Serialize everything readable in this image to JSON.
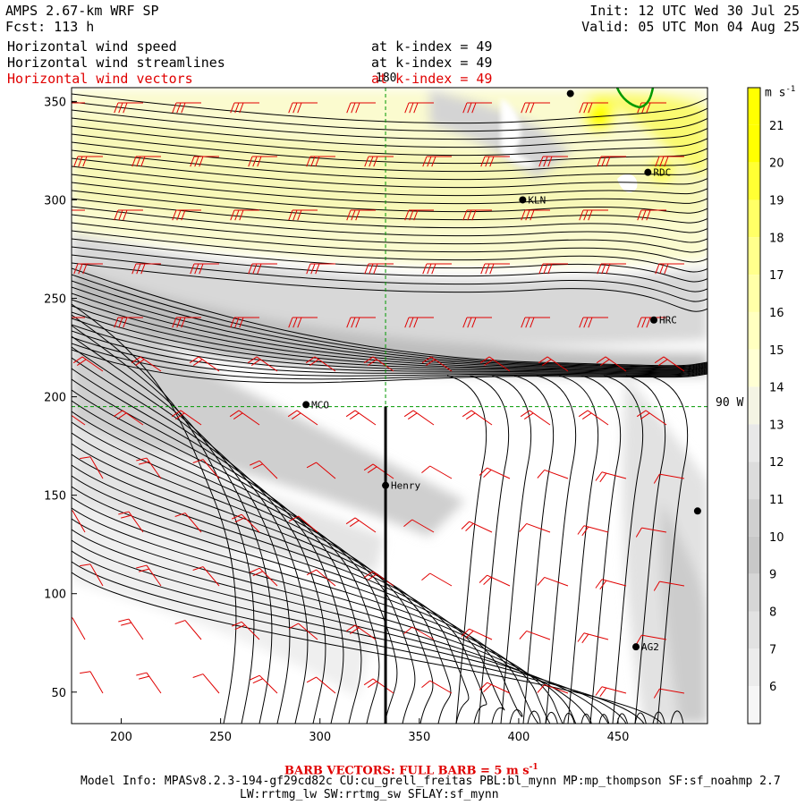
{
  "header": {
    "model_title": "AMPS 2.67-km WRF SP",
    "forecast": "Fcst: 113 h",
    "init": "Init: 12 UTC Wed 30 Jul 25",
    "valid": "Valid: 05 UTC Mon 04 Aug 25",
    "fields": [
      {
        "label": "Horizontal wind speed",
        "level": "at k-index = 49",
        "color": "#000000"
      },
      {
        "label": "Horizontal wind streamlines",
        "level": "at k-index = 49",
        "color": "#000000"
      },
      {
        "label": "Horizontal wind vectors",
        "level": "at k-index = 49",
        "color": "#e00000"
      }
    ]
  },
  "reference_labels": {
    "meridian_top": "180",
    "meridian_right": "90 W"
  },
  "stations": [
    {
      "name": "KLN",
      "x": 402,
      "y": 300
    },
    {
      "name": "RDC",
      "x": 465,
      "y": 314
    },
    {
      "name": "HRC",
      "x": 468,
      "y": 239
    },
    {
      "name": "MCO",
      "x": 293,
      "y": 196
    },
    {
      "name": "Henry",
      "x": 333,
      "y": 155
    },
    {
      "name": "AG2",
      "x": 459,
      "y": 73
    }
  ],
  "unlabeled_points": [
    {
      "x": 426,
      "y": 354
    },
    {
      "x": 490,
      "y": 142
    }
  ],
  "colorbar": {
    "unit": "m s",
    "unit_exp": "-1",
    "levels": [
      21,
      20,
      19,
      18,
      17,
      16,
      15,
      14,
      13,
      12,
      11,
      10,
      9,
      8,
      7,
      6
    ],
    "colors": [
      "#ffff00",
      "#ffff33",
      "#ffff66",
      "#ffff8c",
      "#ffffa8",
      "#ffffc0",
      "#ffffd4",
      "#f4f4e4",
      "#e8e8e8",
      "#dcdcdc",
      "#d0d0d0",
      "#c8c8c8",
      "#d6d6d6",
      "#e2e2e2",
      "#ececec",
      "#f6f6f6"
    ]
  },
  "footer": {
    "barb_note": "BARB VECTORS: FULL BARB = 5 m s",
    "barb_exp": "-1",
    "model_info": "Model Info: MPASv8.2.3-194-gf29cd82c CU:cu_grell_freitas PBL:bl_mynn MP:mp_thompson SF:sf_noahmp 2.7",
    "model_info2": "LW:rrtmg_lw SW:rrtmg_sw SFLAY:sf_mynn"
  },
  "chart_data": {
    "type": "heatmap",
    "description_kind": "wind speed shading with streamlines and barbs on model grid",
    "xlim": [
      175,
      495
    ],
    "ylim": [
      34,
      357
    ],
    "x_ticks": [
      200,
      250,
      300,
      350,
      400,
      450
    ],
    "y_ticks": [
      50,
      100,
      150,
      200,
      250,
      300,
      350
    ],
    "vertical_line_x": 333,
    "dashed_meridian_x": 333,
    "dashed_parallel_y": 195,
    "colors": {
      "streamline": "#000000",
      "barb": "#e00000",
      "reference": "#009900"
    }
  }
}
